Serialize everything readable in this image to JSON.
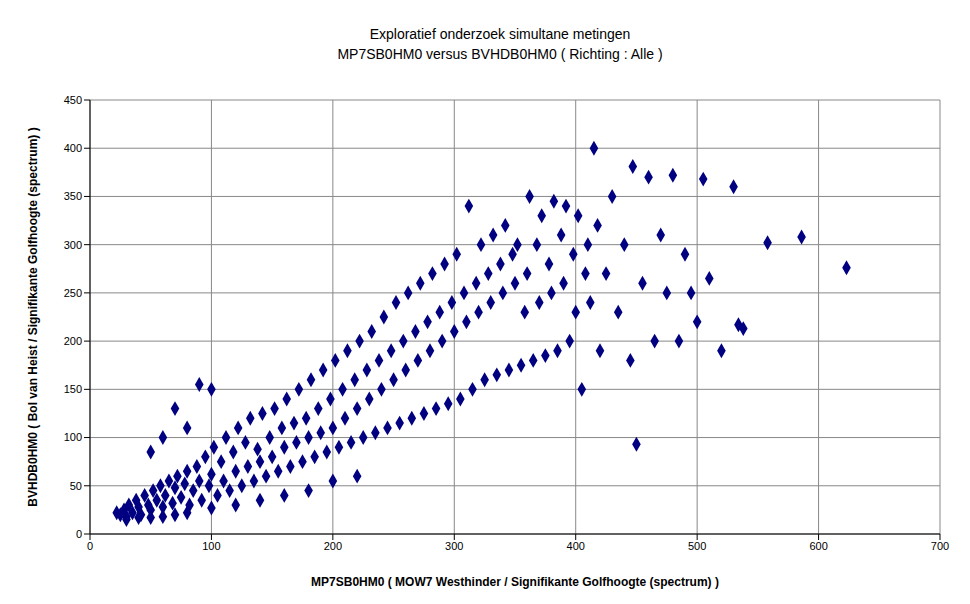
{
  "chart_data": {
    "type": "scatter",
    "title": "Exploratief onderzoek simultane metingen",
    "subtitle": "MP7SB0HM0 versus BVHDB0HM0 ( Richting : Alle )",
    "x_label": "MP7SB0HM0 ( MOW7 Westhinder / Signifikante Golfhoogte (spectrum) )",
    "y_label": "BVHDB0HM0 ( Bol van Heist / Signifikante Golfhoogte (spectrum) )",
    "color": "#000080",
    "marker": "diamond",
    "grid": true,
    "xlim": [
      0,
      700
    ],
    "xticks": [
      0,
      100,
      200,
      300,
      400,
      500,
      600,
      700
    ],
    "ylim": [
      0,
      450
    ],
    "yticks": [
      0,
      50,
      100,
      150,
      200,
      250,
      300,
      350,
      400,
      450
    ],
    "x": [
      22,
      25,
      28,
      30,
      32,
      35,
      38,
      40,
      42,
      45,
      48,
      50,
      52,
      55,
      58,
      60,
      62,
      65,
      68,
      70,
      72,
      75,
      78,
      80,
      82,
      85,
      88,
      90,
      92,
      95,
      98,
      100,
      102,
      105,
      108,
      110,
      112,
      115,
      118,
      120,
      122,
      125,
      128,
      130,
      132,
      135,
      138,
      140,
      142,
      145,
      148,
      150,
      152,
      155,
      158,
      160,
      162,
      165,
      168,
      170,
      172,
      175,
      178,
      180,
      182,
      185,
      188,
      190,
      192,
      195,
      198,
      200,
      202,
      205,
      208,
      210,
      212,
      215,
      218,
      220,
      222,
      225,
      228,
      230,
      232,
      235,
      238,
      240,
      242,
      245,
      248,
      250,
      252,
      255,
      258,
      260,
      262,
      265,
      268,
      270,
      272,
      275,
      278,
      280,
      282,
      285,
      288,
      290,
      292,
      295,
      298,
      300,
      302,
      305,
      308,
      310,
      312,
      315,
      318,
      320,
      322,
      325,
      328,
      330,
      332,
      335,
      338,
      340,
      342,
      345,
      348,
      350,
      352,
      355,
      358,
      360,
      362,
      365,
      368,
      370,
      372,
      375,
      378,
      380,
      382,
      385,
      388,
      390,
      392,
      395,
      398,
      400,
      402,
      405,
      408,
      410,
      412,
      415,
      418,
      420,
      425,
      430,
      435,
      440,
      445,
      447,
      450,
      455,
      460,
      465,
      470,
      475,
      480,
      485,
      490,
      495,
      500,
      505,
      510,
      520,
      530,
      534,
      538,
      558,
      586,
      623,
      30,
      40,
      50,
      60,
      70,
      80,
      100,
      120,
      140,
      160,
      180,
      200,
      220,
      100,
      80,
      70,
      60,
      90,
      50
    ],
    "values": [
      22,
      20,
      25,
      18,
      30,
      22,
      35,
      28,
      20,
      40,
      30,
      25,
      45,
      35,
      50,
      28,
      40,
      55,
      32,
      48,
      60,
      38,
      52,
      65,
      30,
      45,
      70,
      55,
      35,
      80,
      50,
      62,
      90,
      40,
      75,
      55,
      100,
      45,
      85,
      65,
      110,
      50,
      95,
      70,
      120,
      55,
      88,
      75,
      125,
      60,
      100,
      80,
      130,
      65,
      110,
      90,
      140,
      70,
      115,
      95,
      150,
      75,
      120,
      100,
      160,
      80,
      130,
      105,
      170,
      85,
      140,
      110,
      180,
      90,
      150,
      120,
      190,
      95,
      160,
      130,
      200,
      100,
      170,
      140,
      210,
      105,
      180,
      150,
      225,
      110,
      190,
      160,
      240,
      115,
      200,
      170,
      250,
      120,
      210,
      180,
      260,
      125,
      220,
      190,
      270,
      130,
      230,
      200,
      280,
      135,
      240,
      210,
      290,
      140,
      250,
      220,
      340,
      150,
      260,
      230,
      300,
      160,
      270,
      240,
      310,
      165,
      280,
      250,
      320,
      170,
      290,
      260,
      300,
      175,
      230,
      270,
      350,
      180,
      300,
      240,
      330,
      185,
      280,
      250,
      345,
      190,
      310,
      260,
      340,
      200,
      290,
      230,
      330,
      150,
      270,
      300,
      240,
      400,
      320,
      190,
      270,
      350,
      230,
      300,
      180,
      381,
      93,
      260,
      370,
      200,
      310,
      250,
      372,
      200,
      290,
      250,
      220,
      368,
      265,
      190,
      360,
      217,
      213,
      302,
      308,
      276,
      15,
      17,
      17,
      18,
      20,
      22,
      27,
      30,
      35,
      40,
      45,
      55,
      60,
      150,
      110,
      130,
      100,
      155,
      85
    ]
  }
}
